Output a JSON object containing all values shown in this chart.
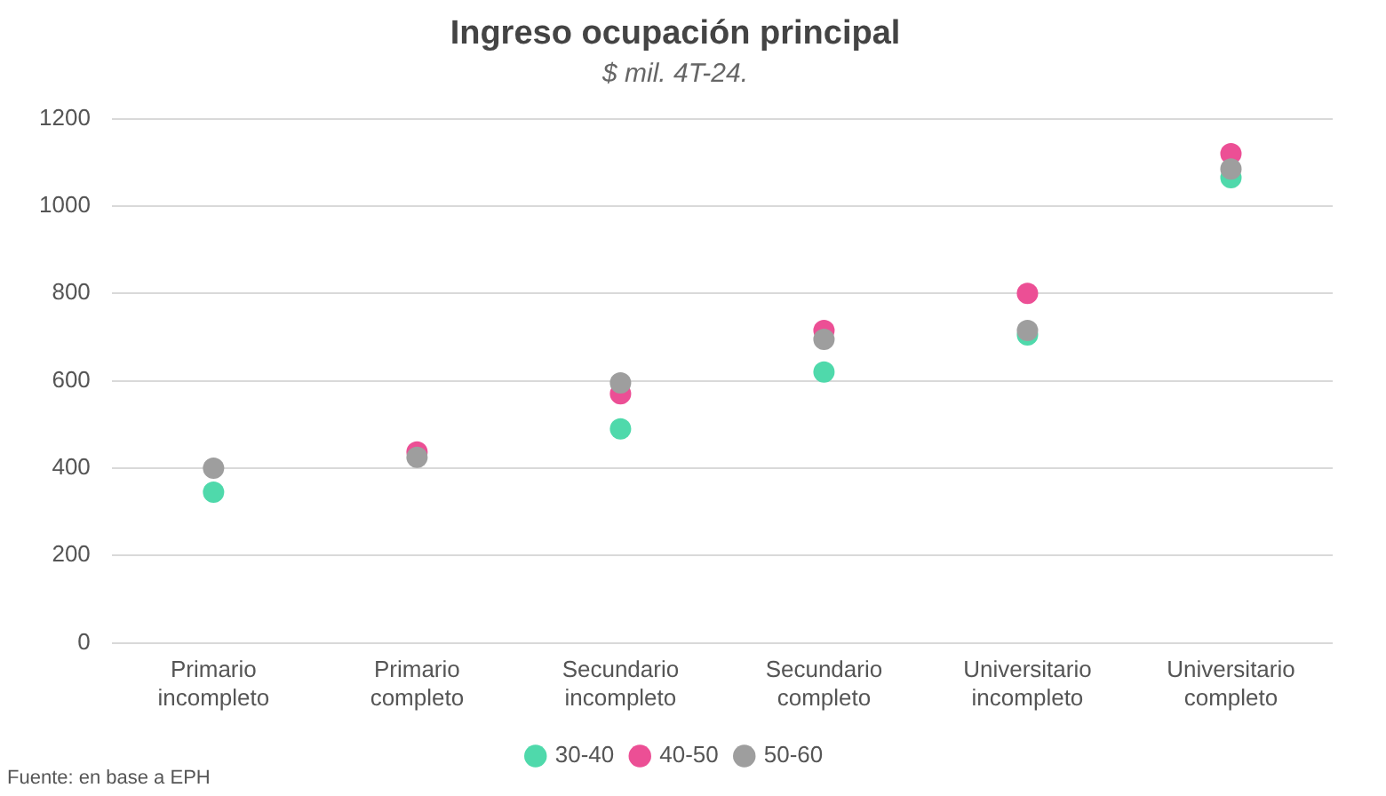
{
  "chart_data": {
    "type": "scatter",
    "title": "Ingreso ocupación principal",
    "subtitle": "$ mil. 4T-24.",
    "categories": [
      "Primario incompleto",
      "Primario completo",
      "Secundario incompleto",
      "Secundario completo",
      "Universitario incompleto",
      "Universitario completo"
    ],
    "series": [
      {
        "name": "30-40",
        "color": "#4fd9ab",
        "values": [
          345,
          null,
          490,
          620,
          705,
          1065
        ]
      },
      {
        "name": "40-50",
        "color": "#ec4f95",
        "values": [
          null,
          437,
          570,
          715,
          800,
          1120
        ]
      },
      {
        "name": "50-60",
        "color": "#9e9e9e",
        "values": [
          400,
          425,
          595,
          695,
          715,
          1085
        ]
      }
    ],
    "ylim": [
      0,
      1200
    ],
    "yticks": [
      0,
      200,
      400,
      600,
      800,
      1000,
      1200
    ],
    "grid": "y",
    "legend": "bottom",
    "marker": "circle",
    "annotations": [
      "Fuente: en base a EPH"
    ]
  }
}
